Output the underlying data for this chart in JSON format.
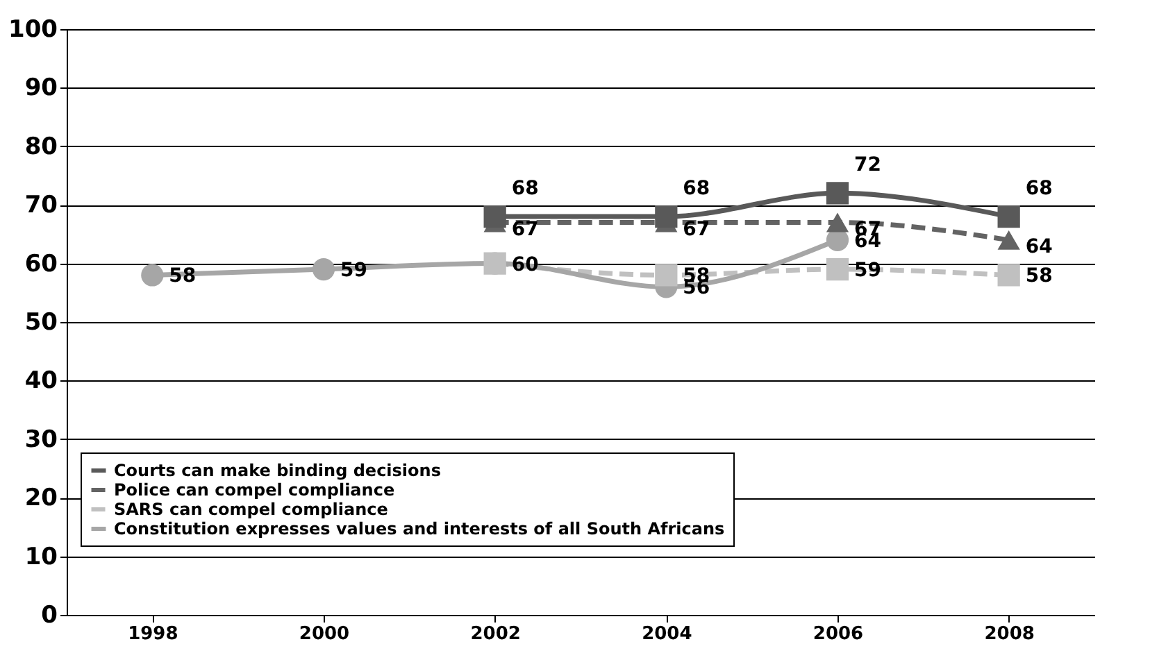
{
  "chart_data": {
    "type": "line",
    "categories": [
      "1998",
      "2000",
      "2002",
      "2004",
      "2006",
      "2008"
    ],
    "ylim": [
      0,
      100
    ],
    "yticks": [
      0,
      10,
      20,
      30,
      40,
      50,
      60,
      70,
      80,
      90,
      100
    ],
    "grid": "y",
    "legend": "bottom",
    "series": [
      {
        "name": "Courts can make binding decisions",
        "color": "#595959",
        "marker": "square",
        "line_style": "solid",
        "values": [
          null,
          null,
          68,
          68,
          72,
          68
        ],
        "value_labels": [
          null,
          null,
          "68",
          "68",
          "72",
          "68"
        ]
      },
      {
        "name": "Police can compel compliance",
        "color": "#636363",
        "marker": "triangle",
        "line_style": "dashed",
        "values": [
          null,
          null,
          67,
          67,
          67,
          64
        ],
        "value_labels": [
          null,
          null,
          "67",
          "67",
          "67",
          "64"
        ]
      },
      {
        "name": "SARS can compel compliance",
        "color": "#c0c0c0",
        "marker": "square",
        "line_style": "dashed",
        "values": [
          null,
          null,
          60,
          58,
          59,
          58
        ],
        "value_labels": [
          null,
          null,
          null,
          "58",
          "59",
          "58"
        ]
      },
      {
        "name": "Constitution expresses values and interests of all South Africans",
        "color": "#a6a6a6",
        "marker": "circle",
        "line_style": "solid",
        "values": [
          58,
          59,
          60,
          56,
          64,
          null
        ],
        "value_labels": [
          "58",
          "59",
          "60",
          "56",
          "64",
          null
        ]
      }
    ]
  }
}
